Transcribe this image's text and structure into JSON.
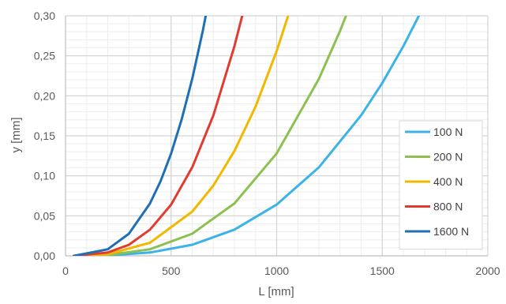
{
  "chart_data": {
    "type": "line",
    "title": "",
    "xlabel": "L [mm]",
    "ylabel": "y [mm]",
    "xlim": [
      0,
      2000
    ],
    "ylim": [
      0,
      0.3
    ],
    "xticks": [
      "0",
      "500",
      "1000",
      "1500",
      "2000"
    ],
    "yticks": [
      "0,00",
      "0,05",
      "0,10",
      "0,15",
      "0,20",
      "0,25",
      "0,30"
    ],
    "grid": true,
    "minor_grid": true,
    "legend_position": "bottom-right",
    "series": [
      {
        "name": "100 N",
        "color": "#3BB3E6",
        "x": [
          40,
          200,
          400,
          600,
          800,
          1000,
          1200,
          1400,
          1500,
          1600,
          1680
        ],
        "y": [
          0.0,
          0.0005,
          0.0041,
          0.0138,
          0.0328,
          0.064,
          0.1106,
          0.1756,
          0.216,
          0.2621,
          0.3035
        ]
      },
      {
        "name": "200 N",
        "color": "#8CC152",
        "x": [
          40,
          200,
          400,
          600,
          800,
          1000,
          1200,
          1300,
          1335
        ],
        "y": [
          0.0,
          0.001,
          0.0082,
          0.0276,
          0.0655,
          0.128,
          0.2212,
          0.2812,
          0.3045
        ]
      },
      {
        "name": "400 N",
        "color": "#F2B800",
        "x": [
          40,
          200,
          400,
          600,
          700,
          800,
          900,
          1000,
          1058
        ],
        "y": [
          0.0,
          0.002,
          0.0164,
          0.0553,
          0.0878,
          0.1311,
          0.1866,
          0.256,
          0.3032
        ]
      },
      {
        "name": "800 N",
        "color": "#E03C31",
        "x": [
          40,
          200,
          300,
          400,
          500,
          600,
          700,
          800,
          840
        ],
        "y": [
          0.0,
          0.0041,
          0.0138,
          0.0328,
          0.064,
          0.1106,
          0.1756,
          0.2621,
          0.3034
        ]
      },
      {
        "name": "1600 N",
        "color": "#1F6FB5",
        "x": [
          40,
          200,
          300,
          400,
          450,
          500,
          550,
          600,
          650,
          667
        ],
        "y": [
          0.0,
          0.0082,
          0.0276,
          0.0655,
          0.0933,
          0.128,
          0.1704,
          0.2212,
          0.2812,
          0.304
        ]
      }
    ]
  }
}
